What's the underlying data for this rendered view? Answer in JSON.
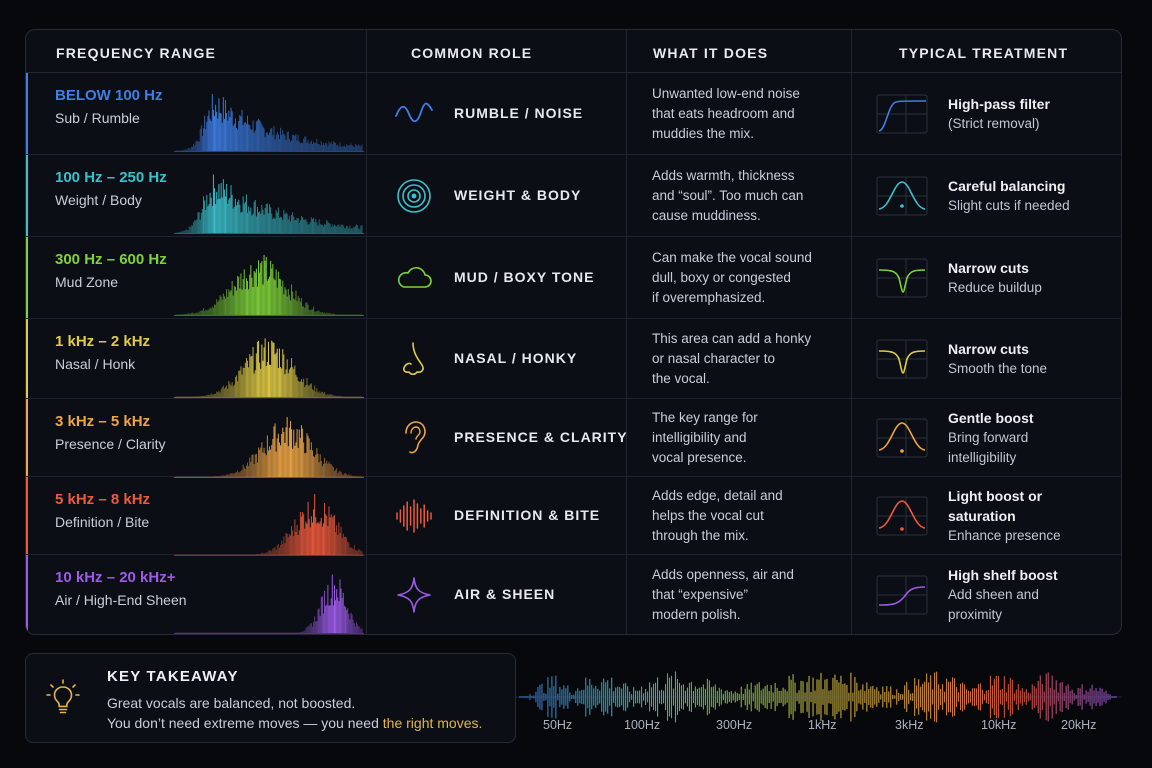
{
  "header": {
    "col1": "FREQUENCY RANGE",
    "col2": "COMMON ROLE",
    "col3": "WHAT IT DOES",
    "col4": "TYPICAL TREATMENT"
  },
  "rows": [
    {
      "range": "BELOW 100 Hz",
      "sub": "Sub / Rumble",
      "color": "#3f7fe6",
      "role": "RUMBLE / NOISE",
      "icon": "wave-icon",
      "desc": [
        "Unwanted low-end noise",
        "that eats headroom and",
        "muddies the mix."
      ],
      "treat_title": [
        "High-pass filter"
      ],
      "treat_sub": [
        "(Strict removal)"
      ],
      "treat_icon": "high-pass-curve-icon"
    },
    {
      "range": "100 Hz – 250 Hz",
      "sub": "Weight / Body",
      "color": "#3cc0cc",
      "role": "WEIGHT & BODY",
      "icon": "speaker-icon",
      "desc": [
        "Adds warmth, thickness",
        "and “soul”. Too much can",
        "cause muddiness."
      ],
      "treat_title": [
        "Careful balancing"
      ],
      "treat_sub": [
        "Slight cuts if needed"
      ],
      "treat_icon": "bell-curve-icon"
    },
    {
      "range": "300 Hz – 600 Hz",
      "sub": "Mud Zone",
      "color": "#7fd23a",
      "role": "MUD / BOXY TONE",
      "icon": "cloud-icon",
      "desc": [
        "Can make the vocal sound",
        "dull, boxy or congested",
        "if overemphasized."
      ],
      "treat_title": [
        "Narrow cuts"
      ],
      "treat_sub": [
        "Reduce buildup"
      ],
      "treat_icon": "notch-cut-icon"
    },
    {
      "range": "1 kHz – 2 kHz",
      "sub": "Nasal / Honk",
      "color": "#e2cc45",
      "role": "NASAL / HONKY",
      "icon": "nose-icon",
      "desc": [
        "This area can add a honky",
        "or nasal character to",
        "the vocal."
      ],
      "treat_title": [
        "Narrow cuts"
      ],
      "treat_sub": [
        "Smooth the tone"
      ],
      "treat_icon": "notch-cut-icon"
    },
    {
      "range": "3 kHz – 5 kHz",
      "sub": "Presence / Clarity",
      "color": "#eea545",
      "role": "PRESENCE & CLARITY",
      "icon": "ear-icon",
      "desc": [
        "The key range for",
        "intelligibility and",
        "vocal presence."
      ],
      "treat_title": [
        "Gentle boost"
      ],
      "treat_sub": [
        "Bring forward",
        "intelligibility"
      ],
      "treat_icon": "bell-boost-icon"
    },
    {
      "range": "5 kHz – 8 kHz",
      "sub": "Definition / Bite",
      "color": "#ec5a3c",
      "role": "DEFINITION & BITE",
      "icon": "soundwave-icon",
      "desc": [
        "Adds edge, detail and",
        "helps the vocal cut",
        "through the mix."
      ],
      "treat_title": [
        "Light boost or",
        "saturation"
      ],
      "treat_sub": [
        "Enhance presence"
      ],
      "treat_icon": "bell-boost-icon"
    },
    {
      "range": "10 kHz – 20 kHz+",
      "sub": "Air / High-End Sheen",
      "color": "#9d5be8",
      "role": "AIR & SHEEN",
      "icon": "sparkle-icon",
      "desc": [
        "Adds openness, air and",
        "that “expensive”",
        "modern polish."
      ],
      "treat_title": [
        "High shelf boost"
      ],
      "treat_sub": [
        "Add sheen and",
        "proximity"
      ],
      "treat_icon": "high-shelf-curve-icon"
    }
  ],
  "takeaway": {
    "title": "KEY TAKEAWAY",
    "line1": "Great vocals are balanced, not boosted.",
    "line2_prefix": "You don’t need extreme moves — you need ",
    "line2_highlight": "the right moves.",
    "icon": "lightbulb-icon"
  },
  "spectrum_ticks": [
    "50Hz",
    "100Hz",
    "300Hz",
    "1kHz",
    "3kHz",
    "10kHz",
    "20kHz"
  ]
}
